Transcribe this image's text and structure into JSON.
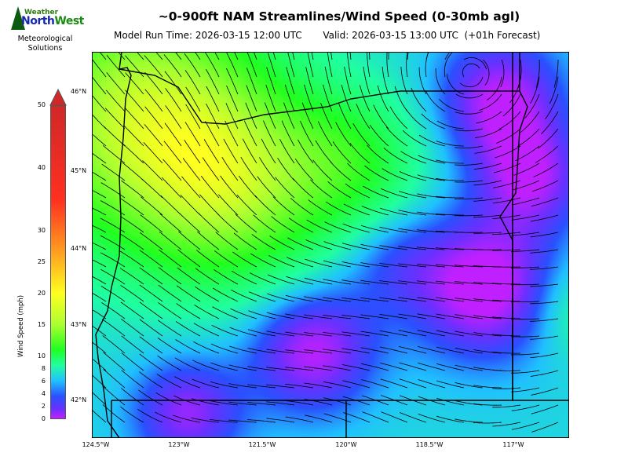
{
  "header": {
    "title": "~0-900ft NAM Streamlines/Wind Speed (0-30mb agl)",
    "subtitle": "Model Run Time: 2026-03-15 12:00 UTC       Valid: 2026-03-15 13:00 UTC  (+01h Forecast)"
  },
  "logo": {
    "line1": "Weather",
    "line2a": "North",
    "line2b": "West",
    "tagline": "Meteorological Solutions"
  },
  "colorbar": {
    "label": "Wind Speed (mph)",
    "ticks": [
      "50",
      "40",
      "30",
      "25",
      "20",
      "15",
      "10",
      "8",
      "6",
      "4",
      "2",
      "0"
    ],
    "colors": [
      "#c020ff",
      "#2a50ff",
      "#20c0ff",
      "#20ff20",
      "#ffff20",
      "#ffa020",
      "#ff3020",
      "#d02828"
    ]
  },
  "map": {
    "lat_labels": [
      "46°N",
      "45°N",
      "44°N",
      "43°N",
      "42°N"
    ],
    "lon_labels": [
      "124.5°W",
      "123°W",
      "121.5°W",
      "120°W",
      "118.5°W",
      "117°W"
    ]
  }
}
